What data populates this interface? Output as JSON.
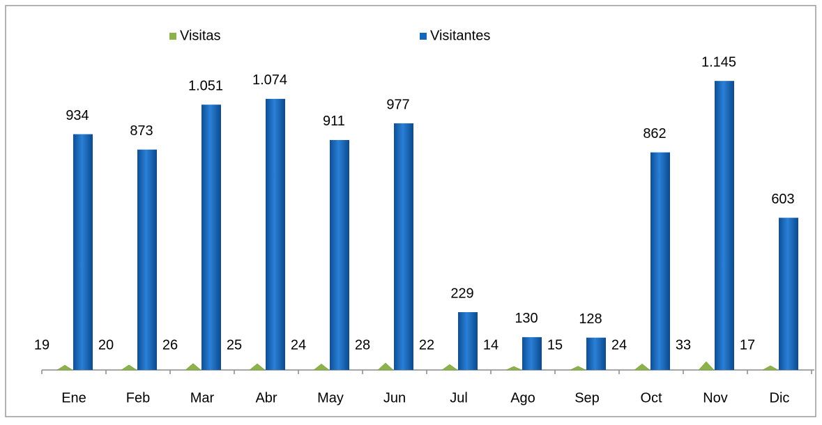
{
  "chart_data": {
    "type": "bar",
    "categories": [
      "Ene",
      "Feb",
      "Mar",
      "Abr",
      "May",
      "Jun",
      "Jul",
      "Ago",
      "Sep",
      "Oct",
      "Nov",
      "Dic"
    ],
    "series": [
      {
        "name": "Visitas",
        "color": "#8cb34a",
        "values": [
          19,
          20,
          26,
          25,
          24,
          28,
          22,
          14,
          15,
          24,
          33,
          17
        ]
      },
      {
        "name": "Visitantes",
        "color": "#1565b8",
        "values": [
          934,
          873,
          1051,
          1074,
          911,
          977,
          229,
          130,
          128,
          862,
          1145,
          603
        ],
        "value_labels": [
          "934",
          "873",
          "1.051",
          "1.074",
          "911",
          "977",
          "229",
          "130",
          "128",
          "862",
          "1.145",
          "603"
        ]
      }
    ],
    "ylim": [
      0,
      1300
    ],
    "legend": "top"
  }
}
